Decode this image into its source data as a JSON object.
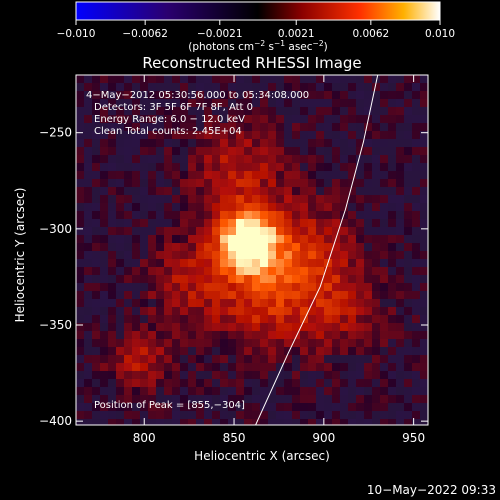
{
  "chart_data": {
    "type": "heatmap",
    "title": "Reconstructed RHESSI Image",
    "xlabel": "Heliocentric X (arcsec)",
    "ylabel": "Heliocentric Y (arcsec)",
    "xlim": [
      762,
      958
    ],
    "ylim": [
      -402,
      -220
    ],
    "x_ticks": [
      800,
      850,
      900,
      950
    ],
    "y_ticks": [
      -250,
      -300,
      -350,
      -400
    ],
    "colorbar": {
      "range": [
        -0.01,
        0.01
      ],
      "tick_values": [
        -0.01,
        -0.0062,
        -0.0021,
        0.0021,
        0.0062,
        0.01
      ],
      "tick_labels": [
        "−0.010",
        "−0.0062",
        "−0.0021",
        "0.0021",
        "0.0062",
        "0.010"
      ],
      "units": {
        "prefix": "(photons cm",
        "exp1": "−2",
        "mid1": " s",
        "exp2": "−1",
        "mid2": " asec",
        "exp3": "−2",
        "suffix": ")"
      },
      "colors": [
        "#0000ff",
        "#000000",
        "#ff3000",
        "#ffb000",
        "#ffffff"
      ]
    },
    "annotations": {
      "time_range": "4−May−2012 05:30:56.000  to 05:34:08.000",
      "detectors": "Detectors: 3F 5F 6F 7F 8F, Att 0",
      "energy": "Energy Range: 6.0 − 12.0 keV",
      "clean": "Clean     Total counts: 2.45E+04",
      "peak": "Position of Peak = [855,−304]"
    },
    "peak": {
      "x": 855,
      "y": -304
    },
    "limb_curve": [
      [
        862,
        -402
      ],
      [
        880,
        -365
      ],
      [
        898,
        -330
      ],
      [
        912,
        -290
      ],
      [
        922,
        -255
      ],
      [
        930,
        -220
      ]
    ],
    "footer_timestamp": "10−May−2022 09:33"
  }
}
